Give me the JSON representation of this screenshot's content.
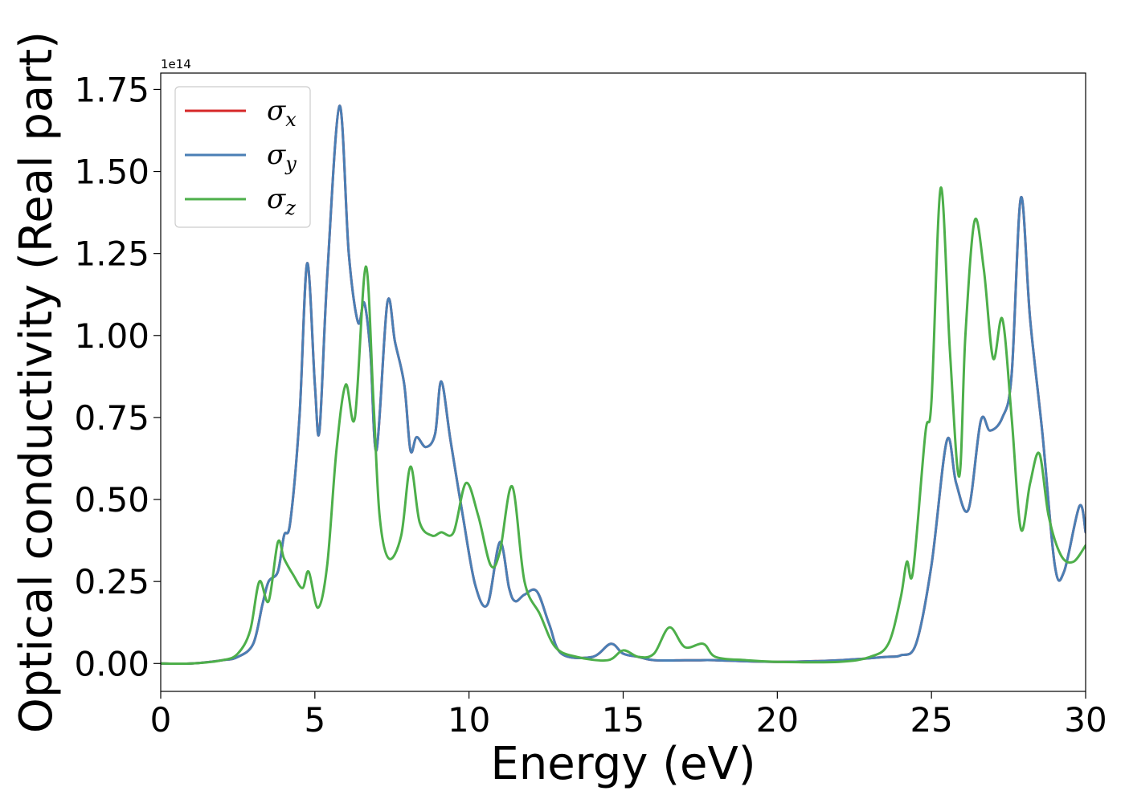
{
  "chart_data": {
    "type": "line",
    "xlabel": "Energy (eV)",
    "ylabel": "Optical conductivity (Real part)",
    "offset_text": "1e14",
    "xlim": [
      0,
      30
    ],
    "ylim": [
      -0.085,
      1.8
    ],
    "x_ticks": [
      0,
      5,
      10,
      15,
      20,
      25,
      30
    ],
    "x_tick_labels": [
      "0",
      "5",
      "10",
      "15",
      "20",
      "25",
      "30"
    ],
    "y_ticks": [
      0.0,
      0.25,
      0.5,
      0.75,
      1.0,
      1.25,
      1.5,
      1.75
    ],
    "y_tick_labels": [
      "0.00",
      "0.25",
      "0.50",
      "0.75",
      "1.00",
      "1.25",
      "1.50",
      "1.75"
    ],
    "grid": false,
    "legend_position": "upper-left",
    "series": [
      {
        "name": "σ",
        "subscript": "x",
        "color": "#d62728",
        "x": [
          0,
          1,
          2,
          2.5,
          3.0,
          3.3,
          3.5,
          3.8,
          4.0,
          4.2,
          4.5,
          4.75,
          5.0,
          5.15,
          5.4,
          5.8,
          6.1,
          6.4,
          6.6,
          6.8,
          7.0,
          7.35,
          7.6,
          7.9,
          8.1,
          8.3,
          8.6,
          8.9,
          9.1,
          9.4,
          9.8,
          10.2,
          10.6,
          11.0,
          11.3,
          11.5,
          11.8,
          12.2,
          12.6,
          13.0,
          14.0,
          14.6,
          15.0,
          15.5,
          16.0,
          17.0,
          17.5,
          18.0,
          20.0,
          22.0,
          23.5,
          24.0,
          24.5,
          25.0,
          25.5,
          25.8,
          26.2,
          26.6,
          26.9,
          27.3,
          27.6,
          27.9,
          28.2,
          28.6,
          29.0,
          29.3,
          29.8,
          30.0
        ],
        "y": [
          0,
          0.0,
          0.01,
          0.02,
          0.06,
          0.18,
          0.25,
          0.28,
          0.39,
          0.43,
          0.75,
          1.22,
          0.85,
          0.71,
          1.18,
          1.7,
          1.25,
          1.04,
          1.1,
          0.95,
          0.65,
          1.1,
          0.98,
          0.85,
          0.65,
          0.69,
          0.66,
          0.7,
          0.86,
          0.68,
          0.45,
          0.24,
          0.18,
          0.37,
          0.23,
          0.19,
          0.21,
          0.22,
          0.12,
          0.03,
          0.02,
          0.06,
          0.03,
          0.02,
          0.01,
          0.01,
          0.01,
          0.01,
          0.005,
          0.01,
          0.02,
          0.025,
          0.06,
          0.3,
          0.68,
          0.55,
          0.47,
          0.74,
          0.71,
          0.75,
          0.88,
          1.42,
          1.05,
          0.7,
          0.3,
          0.28,
          0.48,
          0.4
        ]
      },
      {
        "name": "σ",
        "subscript": "y",
        "color": "#4a7fb5",
        "x": [
          0,
          1,
          2,
          2.5,
          3.0,
          3.3,
          3.5,
          3.8,
          4.0,
          4.2,
          4.5,
          4.75,
          5.0,
          5.15,
          5.4,
          5.8,
          6.1,
          6.4,
          6.6,
          6.8,
          7.0,
          7.35,
          7.6,
          7.9,
          8.1,
          8.3,
          8.6,
          8.9,
          9.1,
          9.4,
          9.8,
          10.2,
          10.6,
          11.0,
          11.3,
          11.5,
          11.8,
          12.2,
          12.6,
          13.0,
          14.0,
          14.6,
          15.0,
          15.5,
          16.0,
          17.0,
          17.5,
          18.0,
          20.0,
          22.0,
          23.5,
          24.0,
          24.5,
          25.0,
          25.5,
          25.8,
          26.2,
          26.6,
          26.9,
          27.3,
          27.6,
          27.9,
          28.2,
          28.6,
          29.0,
          29.3,
          29.8,
          30.0
        ],
        "y": [
          0,
          0.0,
          0.01,
          0.02,
          0.06,
          0.18,
          0.25,
          0.28,
          0.39,
          0.43,
          0.75,
          1.22,
          0.85,
          0.71,
          1.18,
          1.7,
          1.25,
          1.04,
          1.1,
          0.95,
          0.65,
          1.1,
          0.98,
          0.85,
          0.65,
          0.69,
          0.66,
          0.7,
          0.86,
          0.68,
          0.45,
          0.24,
          0.18,
          0.37,
          0.23,
          0.19,
          0.21,
          0.22,
          0.12,
          0.03,
          0.02,
          0.06,
          0.03,
          0.02,
          0.01,
          0.01,
          0.01,
          0.01,
          0.005,
          0.01,
          0.02,
          0.025,
          0.06,
          0.3,
          0.68,
          0.55,
          0.47,
          0.74,
          0.71,
          0.75,
          0.88,
          1.42,
          1.05,
          0.7,
          0.3,
          0.28,
          0.48,
          0.4
        ]
      },
      {
        "name": "σ",
        "subscript": "z",
        "color": "#4daf4a",
        "x": [
          0,
          1,
          2,
          2.5,
          2.9,
          3.2,
          3.5,
          3.8,
          4.0,
          4.3,
          4.6,
          4.8,
          5.1,
          5.4,
          5.7,
          6.0,
          6.3,
          6.65,
          6.9,
          7.1,
          7.4,
          7.8,
          8.1,
          8.4,
          8.8,
          9.1,
          9.5,
          9.9,
          10.3,
          10.7,
          11.0,
          11.4,
          11.8,
          12.3,
          12.8,
          13.5,
          14.5,
          15.0,
          15.5,
          16.0,
          16.5,
          17.0,
          17.6,
          18.0,
          19.0,
          20.0,
          22.0,
          23.0,
          23.6,
          24.0,
          24.2,
          24.4,
          24.8,
          25.0,
          25.3,
          25.6,
          25.9,
          26.1,
          26.4,
          26.7,
          27.0,
          27.3,
          27.6,
          27.9,
          28.2,
          28.5,
          28.8,
          29.2,
          29.6,
          30.0
        ],
        "y": [
          0,
          0.0,
          0.01,
          0.03,
          0.1,
          0.25,
          0.19,
          0.37,
          0.32,
          0.27,
          0.23,
          0.28,
          0.17,
          0.3,
          0.65,
          0.85,
          0.75,
          1.21,
          0.8,
          0.45,
          0.32,
          0.39,
          0.6,
          0.43,
          0.39,
          0.4,
          0.4,
          0.55,
          0.45,
          0.3,
          0.34,
          0.54,
          0.25,
          0.15,
          0.05,
          0.02,
          0.01,
          0.04,
          0.02,
          0.03,
          0.11,
          0.05,
          0.06,
          0.02,
          0.01,
          0.005,
          0.005,
          0.02,
          0.06,
          0.2,
          0.31,
          0.28,
          0.7,
          0.8,
          1.45,
          0.95,
          0.57,
          1.0,
          1.35,
          1.2,
          0.93,
          1.05,
          0.75,
          0.41,
          0.55,
          0.64,
          0.45,
          0.33,
          0.31,
          0.36
        ]
      }
    ]
  }
}
